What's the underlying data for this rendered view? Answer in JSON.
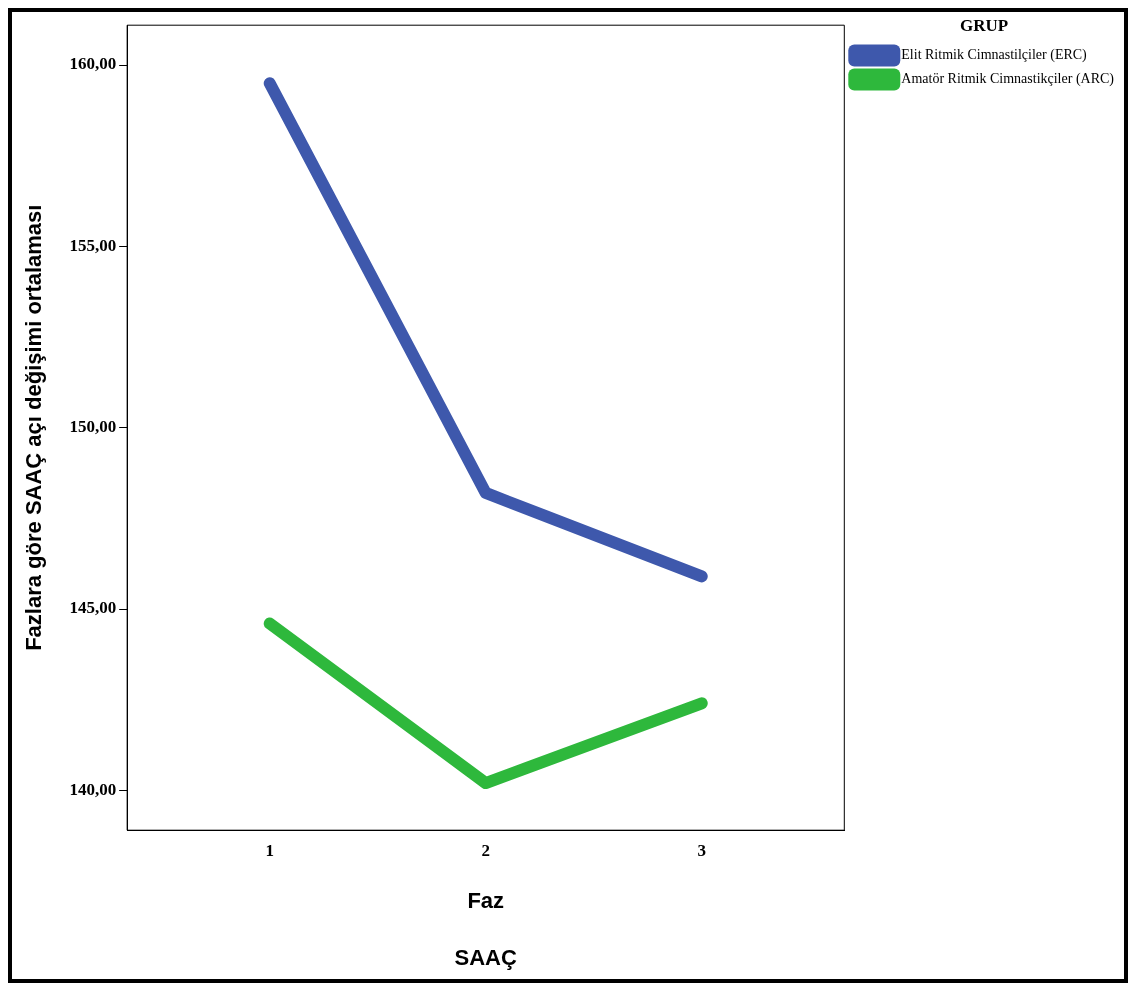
{
  "chart_data": {
    "type": "line",
    "xlabel": "Faz",
    "ylabel": "Fazlara göre SAAÇ açı değişimi ortalaması",
    "legend_title": "GRUP",
    "legend": "top right",
    "x": [
      1,
      2,
      3
    ],
    "xlim": [
      0.34,
      3.66
    ],
    "xticks": [
      1,
      2,
      3
    ],
    "ylim": [
      138.9,
      161.1
    ],
    "yticks": [
      {
        "value": 140,
        "label": "140,00"
      },
      {
        "value": 145,
        "label": "145,00"
      },
      {
        "value": 150,
        "label": "150,00"
      },
      {
        "value": 155,
        "label": "155,00"
      },
      {
        "value": 160,
        "label": "160,00"
      }
    ],
    "grid": false,
    "annotations": [
      "SAAÇ"
    ],
    "series": [
      {
        "name": "Elit Ritmik Cimnastilçiler (ERC)",
        "color": "#3e58ac",
        "values": [
          159.5,
          148.2,
          145.9
        ]
      },
      {
        "name": "Amatör Ritmik Cimnastikçiler (ARC)",
        "color": "#2eb83c",
        "values": [
          144.6,
          140.2,
          142.4
        ]
      }
    ]
  }
}
